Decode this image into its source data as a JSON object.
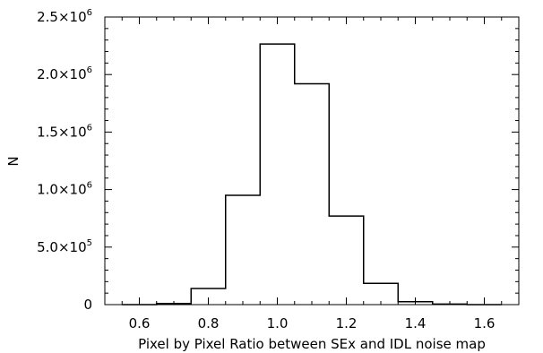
{
  "chart_data": {
    "type": "histogram",
    "title": "",
    "xlabel": "Pixel by Pixel Ratio between SEx and IDL noise map",
    "ylabel": "N",
    "xlim": [
      0.5,
      1.7
    ],
    "ylim": [
      0,
      2500000
    ],
    "xticks": [
      {
        "value": 0.6,
        "label": "0.6"
      },
      {
        "value": 0.8,
        "label": "0.8"
      },
      {
        "value": 1.0,
        "label": "1.0"
      },
      {
        "value": 1.2,
        "label": "1.2"
      },
      {
        "value": 1.4,
        "label": "1.4"
      },
      {
        "value": 1.6,
        "label": "1.6"
      }
    ],
    "yticks": [
      {
        "value": 0,
        "mantissa": "0",
        "exponent": ""
      },
      {
        "value": 500000,
        "mantissa": "5.0×10",
        "exponent": "5"
      },
      {
        "value": 1000000,
        "mantissa": "1.0×10",
        "exponent": "6"
      },
      {
        "value": 1500000,
        "mantissa": "1.5×10",
        "exponent": "6"
      },
      {
        "value": 2000000,
        "mantissa": "2.0×10",
        "exponent": "6"
      },
      {
        "value": 2500000,
        "mantissa": "2.5×10",
        "exponent": "6"
      }
    ],
    "bin_edges": [
      0.55,
      0.65,
      0.75,
      0.85,
      0.95,
      1.05,
      1.15,
      1.25,
      1.35,
      1.45,
      1.55,
      1.65
    ],
    "values": [
      0,
      10000,
      140000,
      950000,
      2265000,
      1920000,
      770000,
      185000,
      25000,
      5000,
      0
    ],
    "grid": false,
    "legend": "none",
    "line_color": "#000000"
  }
}
